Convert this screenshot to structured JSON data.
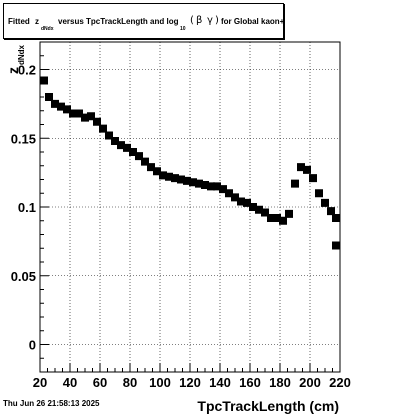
{
  "title": {
    "prefix": "Fitted",
    "z_symbol": "z",
    "z_subscript": "dNdx",
    "middle": "versus TpcTrackLength and log",
    "log_subscript": "10",
    "paren_open": "(",
    "beta": "β",
    "gamma": "γ",
    "paren_close": ")",
    "suffix": "for Global kaon+"
  },
  "footer": {
    "date": "Thu Jun 26 21:58:13 2025"
  },
  "chart_data": {
    "type": "scatter",
    "xlabel": "TpcTrackLength (cm)",
    "ylabel_main": "z",
    "ylabel_sub": "dNdx",
    "xlim": [
      20,
      220
    ],
    "ylim": [
      -0.02,
      0.22
    ],
    "xticks": [
      20,
      40,
      60,
      80,
      100,
      120,
      140,
      160,
      180,
      200,
      220
    ],
    "yticks": [
      {
        "value": 0,
        "label": "0"
      },
      {
        "value": 0.05,
        "label": "0.05"
      },
      {
        "value": 0.1,
        "label": "0.1"
      },
      {
        "value": 0.15,
        "label": "0.15"
      },
      {
        "value": 0.2,
        "label": "0.2"
      }
    ],
    "grid": true,
    "marker": "square",
    "marker_color": "#000000",
    "points": [
      [
        22,
        0.192
      ],
      [
        26,
        0.18
      ],
      [
        30,
        0.175
      ],
      [
        34,
        0.173
      ],
      [
        38,
        0.171
      ],
      [
        42,
        0.168
      ],
      [
        46,
        0.168
      ],
      [
        50,
        0.165
      ],
      [
        54,
        0.166
      ],
      [
        58,
        0.162
      ],
      [
        62,
        0.157
      ],
      [
        66,
        0.152
      ],
      [
        70,
        0.148
      ],
      [
        74,
        0.145
      ],
      [
        78,
        0.143
      ],
      [
        82,
        0.14
      ],
      [
        86,
        0.137
      ],
      [
        90,
        0.133
      ],
      [
        94,
        0.129
      ],
      [
        98,
        0.126
      ],
      [
        102,
        0.123
      ],
      [
        106,
        0.122
      ],
      [
        110,
        0.121
      ],
      [
        114,
        0.12
      ],
      [
        118,
        0.119
      ],
      [
        122,
        0.118
      ],
      [
        126,
        0.117
      ],
      [
        130,
        0.116
      ],
      [
        134,
        0.115
      ],
      [
        138,
        0.115
      ],
      [
        142,
        0.113
      ],
      [
        146,
        0.11
      ],
      [
        150,
        0.107
      ],
      [
        154,
        0.104
      ],
      [
        158,
        0.103
      ],
      [
        162,
        0.1
      ],
      [
        166,
        0.098
      ],
      [
        170,
        0.096
      ],
      [
        174,
        0.092
      ],
      [
        178,
        0.092
      ],
      [
        182,
        0.09
      ],
      [
        186,
        0.095
      ],
      [
        190,
        0.117
      ],
      [
        194,
        0.129
      ],
      [
        198,
        0.127
      ],
      [
        202,
        0.121
      ],
      [
        206,
        0.11
      ],
      [
        210,
        0.103
      ],
      [
        214,
        0.097
      ],
      [
        218,
        0.092
      ],
      [
        222,
        0.072
      ]
    ]
  }
}
